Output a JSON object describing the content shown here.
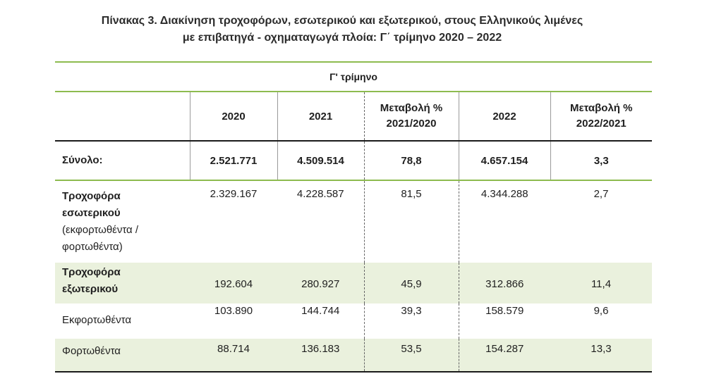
{
  "title": {
    "line1": "Πίνακας 3. Διακίνηση τροχοφόρων, εσωτερικού και εξωτερικού, στους Ελληνικούς λιμένες",
    "line2": "με επιβατηγά - οχηματαγωγά πλοία: Γ΄ τρίμηνο 2020 – 2022"
  },
  "table": {
    "period_label": "Γ' τρίμηνο",
    "columns": [
      "2020",
      "2021",
      "Μεταβολή % 2021/2020",
      "2022",
      "Μεταβολή % 2022/2021"
    ],
    "columns_split": {
      "c3a": "Μεταβολή %",
      "c3b": "2021/2020",
      "c5a": "Μεταβολή %",
      "c5b": "2022/2021"
    },
    "rows": [
      {
        "label": "Σύνολο:",
        "values": [
          "2.521.771",
          "4.509.514",
          "78,8",
          "4.657.154",
          "3,3"
        ]
      },
      {
        "label_bold": "Τροχοφόρα εσωτερικού",
        "label_bold_1": "Τροχοφόρα",
        "label_bold_2": "εσωτερικού",
        "label_sub_1": "(εκφορτωθέντα /",
        "label_sub_2": "φορτωθέντα)",
        "values": [
          "2.329.167",
          "4.228.587",
          "81,5",
          "4.344.288",
          "2,7"
        ]
      },
      {
        "label_bold_1": "Τροχοφόρα",
        "label_bold_2": "εξωτερικού",
        "values": [
          "192.604",
          "280.927",
          "45,9",
          "312.866",
          "11,4"
        ]
      },
      {
        "label": "Εκφορτωθέντα",
        "values": [
          "103.890",
          "144.744",
          "39,3",
          "158.579",
          "9,6"
        ]
      },
      {
        "label": "Φορτωθέντα",
        "values": [
          "88.714",
          "136.183",
          "53,5",
          "154.287",
          "13,3"
        ]
      }
    ]
  },
  "colors": {
    "accent_green": "#8dbb4f",
    "shade_green": "#eaf1dd"
  }
}
